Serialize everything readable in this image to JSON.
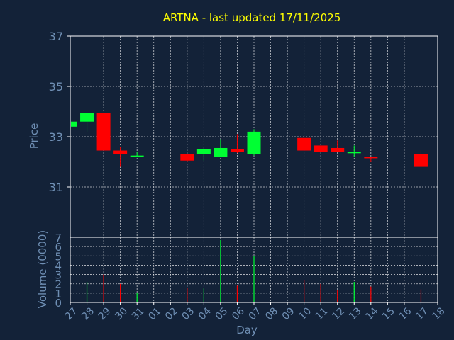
{
  "chart_data": {
    "type": "candlestick",
    "title": "ARTNA - last updated 17/11/2025",
    "ylabel": "Price",
    "volume_label": "Volume (0000)",
    "xlabel": "Day",
    "ylim": [
      29,
      37
    ],
    "yticks": [
      31,
      33,
      35,
      37
    ],
    "volume_ylim": [
      0,
      7
    ],
    "volume_ticks": [
      0,
      1,
      2,
      3,
      4,
      5,
      6,
      7
    ],
    "grid": true,
    "colors": {
      "background": "#132238",
      "up": "#00ff33",
      "down": "#ff0000",
      "grid": "#ffffff",
      "frame": "#ffffff",
      "text": "#6f8fb4",
      "title": "#ffff00"
    },
    "x_ticks": [
      "27",
      "28",
      "29",
      "30",
      "31",
      "01",
      "02",
      "03",
      "04",
      "05",
      "06",
      "07",
      "08",
      "09",
      "10",
      "11",
      "12",
      "13",
      "14",
      "15",
      "16",
      "17",
      "18"
    ],
    "candles": [
      {
        "i": 0,
        "open": 33.4,
        "close": 33.6,
        "high": 33.6,
        "low": 33.4,
        "volume": 0
      },
      {
        "i": 1,
        "open": 33.6,
        "close": 33.95,
        "high": 33.95,
        "low": 33.2,
        "volume": 2.2
      },
      {
        "i": 2,
        "open": 33.95,
        "close": 32.45,
        "high": 33.95,
        "low": 32.45,
        "volume": 3.0
      },
      {
        "i": 3,
        "open": 32.45,
        "close": 32.3,
        "high": 32.6,
        "low": 31.8,
        "volume": 2.0
      },
      {
        "i": 4,
        "open": 32.22,
        "close": 32.25,
        "high": 32.4,
        "low": 32.2,
        "volume": 1.0
      },
      {
        "i": 7,
        "open": 32.3,
        "close": 32.05,
        "high": 32.3,
        "low": 32.0,
        "volume": 1.6
      },
      {
        "i": 8,
        "open": 32.3,
        "close": 32.5,
        "high": 32.6,
        "low": 32.05,
        "volume": 1.5
      },
      {
        "i": 9,
        "open": 32.2,
        "close": 32.55,
        "high": 32.9,
        "low": 32.2,
        "volume": 6.7
      },
      {
        "i": 10,
        "open": 32.5,
        "close": 32.4,
        "high": 33.1,
        "low": 32.35,
        "volume": 1.8
      },
      {
        "i": 11,
        "open": 32.3,
        "close": 33.2,
        "high": 33.3,
        "low": 32.25,
        "volume": 5.0
      },
      {
        "i": 14,
        "open": 32.95,
        "close": 32.45,
        "high": 32.95,
        "low": 32.45,
        "volume": 2.4
      },
      {
        "i": 15,
        "open": 32.65,
        "close": 32.4,
        "high": 32.65,
        "low": 32.4,
        "volume": 2.0
      },
      {
        "i": 16,
        "open": 32.55,
        "close": 32.4,
        "high": 32.85,
        "low": 32.4,
        "volume": 1.3
      },
      {
        "i": 17,
        "open": 32.35,
        "close": 32.4,
        "high": 32.65,
        "low": 32.2,
        "volume": 2.2
      },
      {
        "i": 18,
        "open": 32.2,
        "close": 32.15,
        "high": 32.2,
        "low": 32.0,
        "volume": 1.7
      },
      {
        "i": 21,
        "open": 32.3,
        "close": 31.8,
        "high": 32.45,
        "low": 31.8,
        "volume": 1.4
      }
    ]
  }
}
